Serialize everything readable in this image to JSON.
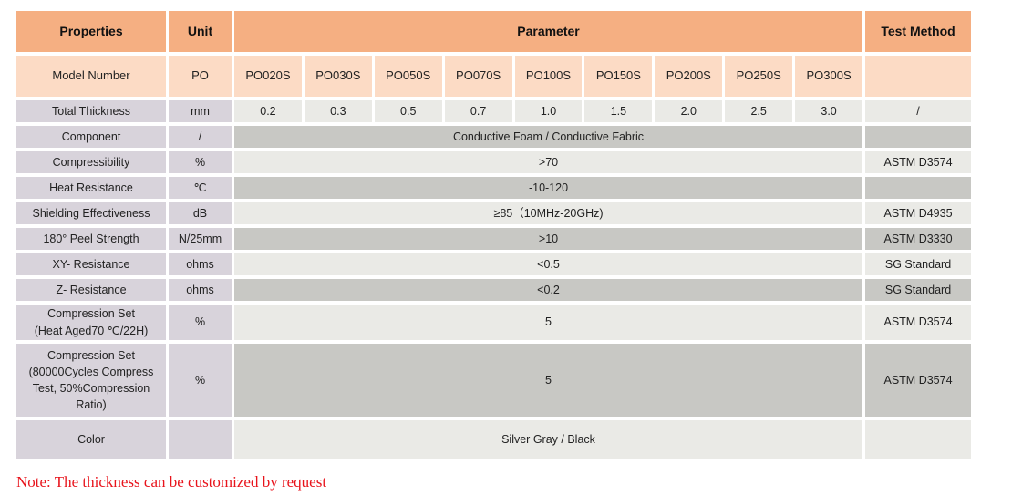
{
  "header": {
    "properties": "Properties",
    "unit": "Unit",
    "parameter": "Parameter",
    "test_method": "Test Method"
  },
  "model_row": {
    "label": "Model Number",
    "unit": "PO",
    "models": [
      "PO020S",
      "PO030S",
      "PO050S",
      "PO070S",
      "PO100S",
      "PO150S",
      "PO200S",
      "PO250S",
      "PO300S"
    ],
    "test": ""
  },
  "thickness_row": {
    "label": "Total Thickness",
    "unit": "mm",
    "values": [
      "0.2",
      "0.3",
      "0.5",
      "0.7",
      "1.0",
      "1.5",
      "2.0",
      "2.5",
      "3.0"
    ],
    "test": "/"
  },
  "rows": [
    {
      "label": "Component",
      "unit": "/",
      "value": "Conductive Foam / Conductive Fabric",
      "test": ""
    },
    {
      "label": "Compressibility",
      "unit": "%",
      "value": ">70",
      "test": "ASTM D3574"
    },
    {
      "label": "Heat Resistance",
      "unit": "℃",
      "value": "-10-120",
      "test": ""
    },
    {
      "label": "Shielding Effectiveness",
      "unit": "dB",
      "value": "≥85（10MHz-20GHz)",
      "test": "ASTM D4935"
    },
    {
      "label": "180° Peel Strength",
      "unit": "N/25mm",
      "value": ">10",
      "test": "ASTM D3330"
    },
    {
      "label": "XY- Resistance",
      "unit": "ohms",
      "value": "<0.5",
      "test": "SG Standard"
    },
    {
      "label": "Z- Resistance",
      "unit": "ohms",
      "value": "<0.2",
      "test": "SG Standard"
    },
    {
      "label": "Compression Set\n(Heat Aged70 ℃/22H)",
      "unit": "%",
      "value": "5",
      "test": "ASTM D3574"
    },
    {
      "label": "Compression Set\n(80000Cycles Compress\nTest, 50%Compression\nRatio)",
      "unit": "%",
      "value": "5",
      "test": "ASTM D3574"
    },
    {
      "label": "Color",
      "unit": "",
      "value": "Silver Gray / Black",
      "test": ""
    }
  ],
  "note": "Note: The thickness can be customized by request",
  "colors": {
    "header": "#F5AF82",
    "model_row": "#FCDBC5",
    "property_cell": "#D8D3DB",
    "light_cell": "#EAEAE6",
    "dark_cell": "#C8C8C4",
    "note": "#E8141C"
  }
}
